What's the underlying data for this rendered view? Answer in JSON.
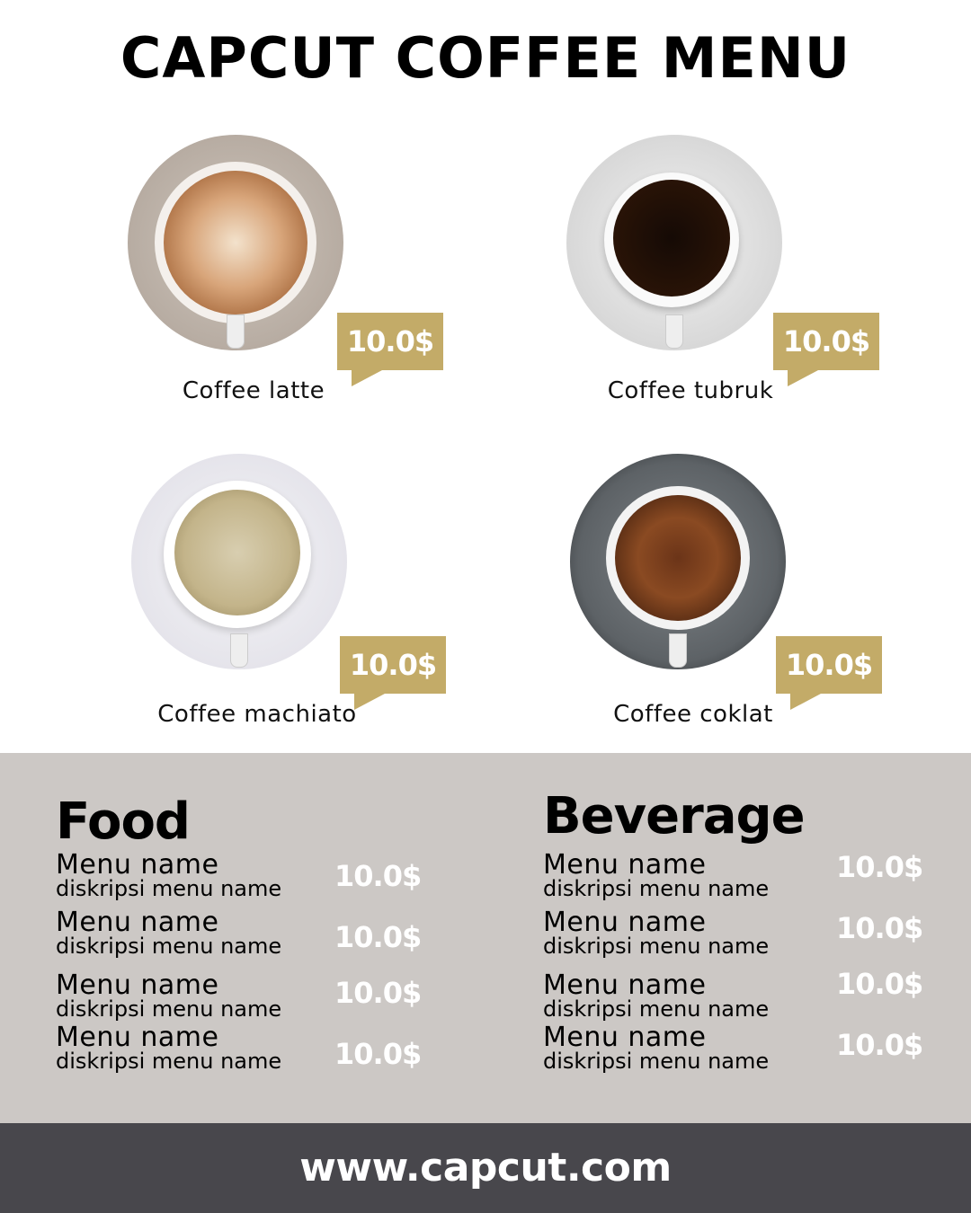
{
  "title": "CAPCUT COFFEE MENU",
  "colors": {
    "accent": "#c3ab68",
    "menu_bg": "#ccc8c5",
    "footer_bg": "#48474c"
  },
  "coffees": [
    {
      "name": "Coffee latte",
      "price": "10.0$"
    },
    {
      "name": "Coffee tubruk",
      "price": "10.0$"
    },
    {
      "name": "Coffee machiato",
      "price": "10.0$"
    },
    {
      "name": "Coffee coklat",
      "price": "10.0$"
    }
  ],
  "food": {
    "title": "Food",
    "items": [
      {
        "name": "Menu name",
        "desc": "diskripsi menu name",
        "price": "10.0$"
      },
      {
        "name": "Menu name",
        "desc": "diskripsi menu name",
        "price": "10.0$"
      },
      {
        "name": "Menu name",
        "desc": "diskripsi menu name",
        "price": "10.0$"
      },
      {
        "name": "Menu name",
        "desc": "diskripsi menu name",
        "price": "10.0$"
      }
    ]
  },
  "beverage": {
    "title": "Beverage",
    "items": [
      {
        "name": "Menu name",
        "desc": "diskripsi menu name",
        "price": "10.0$"
      },
      {
        "name": "Menu name",
        "desc": "diskripsi menu name",
        "price": "10.0$"
      },
      {
        "name": "Menu name",
        "desc": "diskripsi menu name",
        "price": "10.0$"
      },
      {
        "name": "Menu name",
        "desc": "diskripsi menu name",
        "price": "10.0$"
      }
    ]
  },
  "footer": {
    "url": "www.capcut.com"
  }
}
